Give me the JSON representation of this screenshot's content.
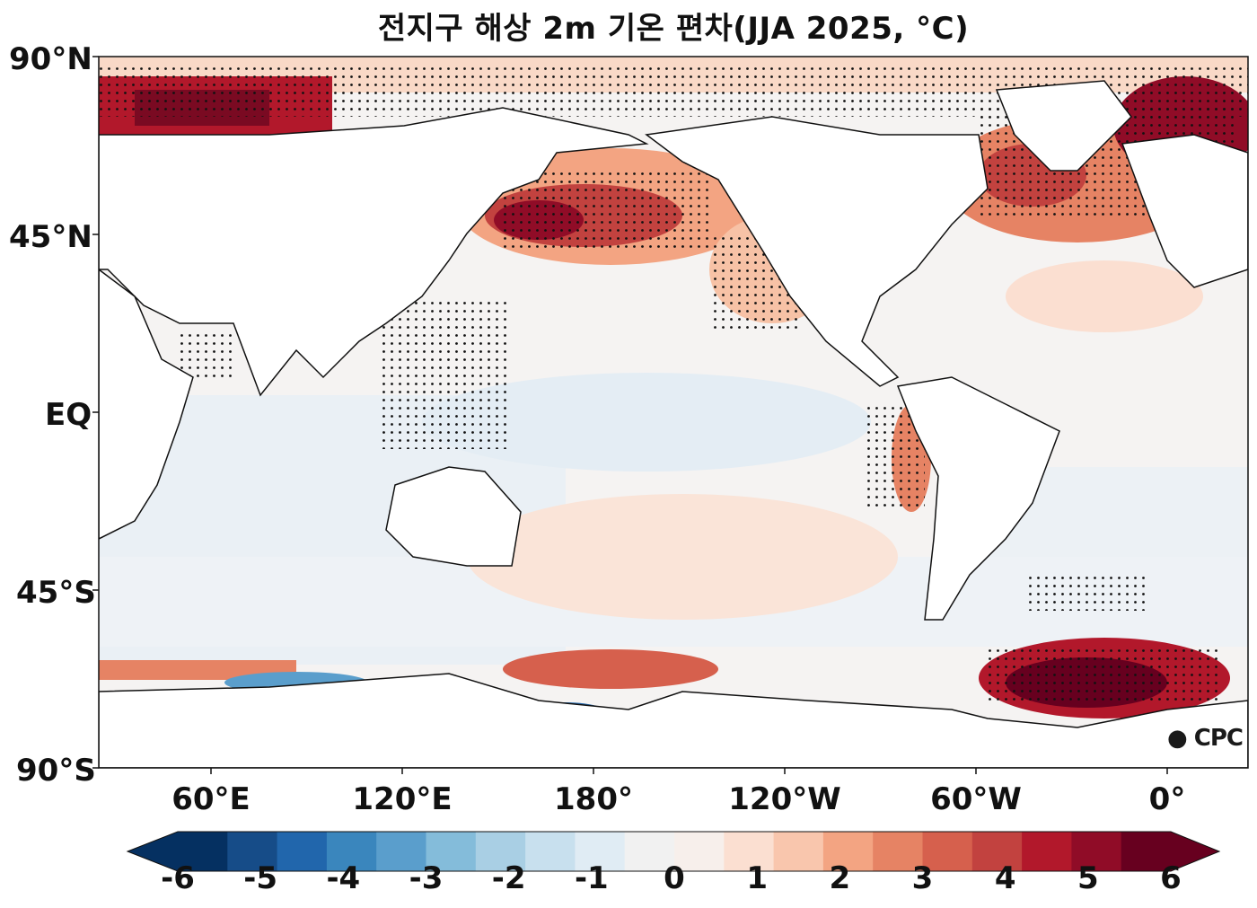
{
  "title": "전지구 해상 2m 기온 편차(JJA 2025, °C)",
  "lat_labels": [
    "90°N",
    "45°N",
    "EQ",
    "45°S",
    "90°S"
  ],
  "lon_labels": [
    "60°E",
    "120°E",
    "180°",
    "120°W",
    "60°W",
    "0°"
  ],
  "colorbar": {
    "labels": [
      "-6",
      "-5",
      "-4",
      "-3",
      "-2",
      "-1",
      "0",
      "1",
      "2",
      "3",
      "4",
      "5",
      "6"
    ],
    "colors": [
      "#053061",
      "#164c88",
      "#2166ac",
      "#3a86bd",
      "#5a9ecc",
      "#84bcda",
      "#a9cfe4",
      "#c8e0ee",
      "#e0ecf4",
      "#f1f1f1",
      "#f7efeb",
      "#fbdfd1",
      "#f9c6ad",
      "#f3a482",
      "#e68364",
      "#d6604d",
      "#c2423f",
      "#b2182b",
      "#900c27",
      "#67001f"
    ]
  },
  "logo": "CPC"
}
